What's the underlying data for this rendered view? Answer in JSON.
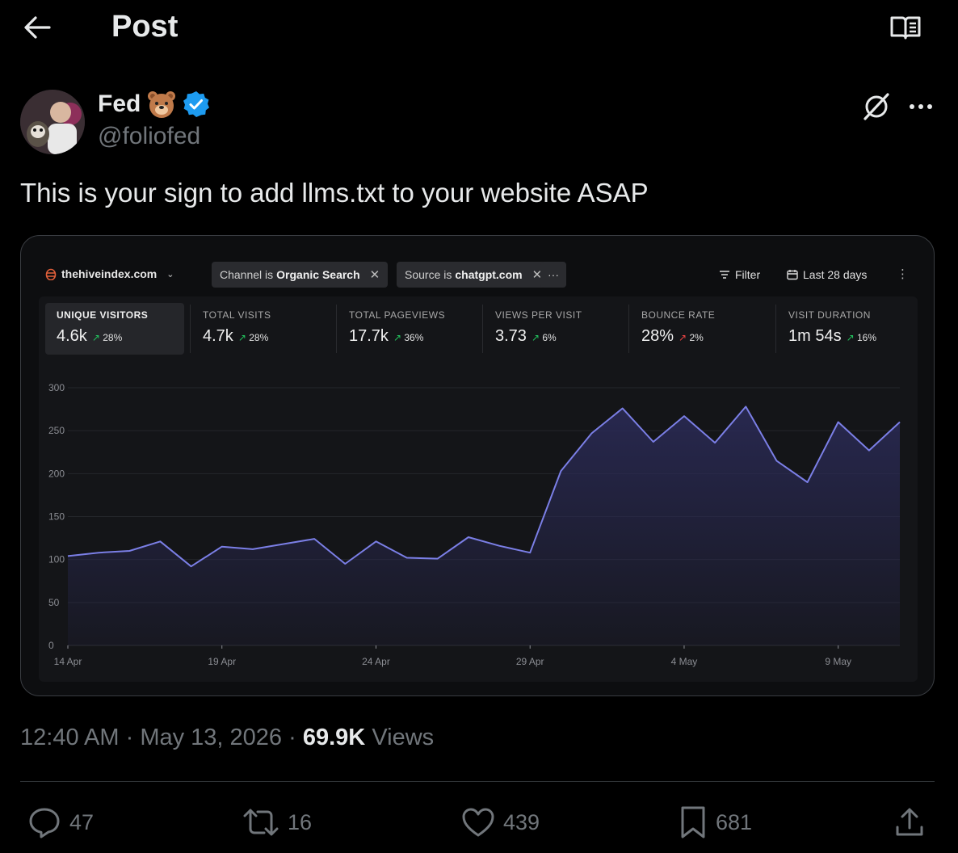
{
  "header": {
    "title": "Post",
    "back_icon": "arrow-left-icon",
    "reader_icon": "book-open-icon"
  },
  "author": {
    "name": "Fed",
    "emoji": "bear-face",
    "verified": true,
    "handle": "@foliofed"
  },
  "post": {
    "text": "This is your sign to add llms.txt to your website ASAP"
  },
  "dashboard": {
    "site": "thehiveindex.com",
    "chips": [
      {
        "prefix": "Channel is",
        "value": "Organic Search"
      },
      {
        "prefix": "Source is",
        "value": "chatgpt.com"
      }
    ],
    "more_label": "···",
    "filter_label": "Filter",
    "date_label": "Last 28 days",
    "metrics": [
      {
        "label": "UNIQUE VISITORS",
        "value": "4.6k",
        "change": "28%",
        "direction": "up-good",
        "active": true
      },
      {
        "label": "TOTAL VISITS",
        "value": "4.7k",
        "change": "28%",
        "direction": "up-good"
      },
      {
        "label": "TOTAL PAGEVIEWS",
        "value": "17.7k",
        "change": "36%",
        "direction": "up-good"
      },
      {
        "label": "VIEWS PER VISIT",
        "value": "3.73",
        "change": "6%",
        "direction": "up-good"
      },
      {
        "label": "BOUNCE RATE",
        "value": "28%",
        "change": "2%",
        "direction": "up-bad"
      },
      {
        "label": "VISIT DURATION",
        "value": "1m 54s",
        "change": "16%",
        "direction": "up-good"
      }
    ]
  },
  "chart_data": {
    "type": "area",
    "ylim": [
      0,
      300
    ],
    "yticks": [
      0,
      50,
      100,
      150,
      200,
      250,
      300
    ],
    "xtick_labels": [
      "14 Apr",
      "19 Apr",
      "24 Apr",
      "29 Apr",
      "4 May",
      "9 May"
    ],
    "x": [
      "14 Apr",
      "15 Apr",
      "16 Apr",
      "17 Apr",
      "18 Apr",
      "19 Apr",
      "20 Apr",
      "21 Apr",
      "22 Apr",
      "23 Apr",
      "24 Apr",
      "25 Apr",
      "26 Apr",
      "27 Apr",
      "28 Apr",
      "29 Apr",
      "30 Apr",
      "1 May",
      "2 May",
      "3 May",
      "4 May",
      "5 May",
      "6 May",
      "7 May",
      "8 May",
      "9 May",
      "10 May",
      "11 May"
    ],
    "series": [
      {
        "values": [
          104,
          108,
          110,
          121,
          92,
          115,
          112,
          118,
          124,
          95,
          121,
          102,
          101,
          126,
          116,
          108,
          203,
          247,
          276,
          237,
          267,
          236,
          278,
          215,
          190,
          260,
          227,
          260
        ]
      }
    ],
    "colors": {
      "line": "#7b7fe6",
      "fill": "#2a2a55",
      "grid": "#24262b",
      "axis_text": "#8b8d93"
    }
  },
  "meta": {
    "time": "12:40 AM",
    "date": "May 13, 2026",
    "views_count": "69.9K",
    "views_label": "Views",
    "dot": "·"
  },
  "actions": {
    "replies": "47",
    "reposts": "16",
    "likes": "439",
    "bookmarks": "681"
  }
}
